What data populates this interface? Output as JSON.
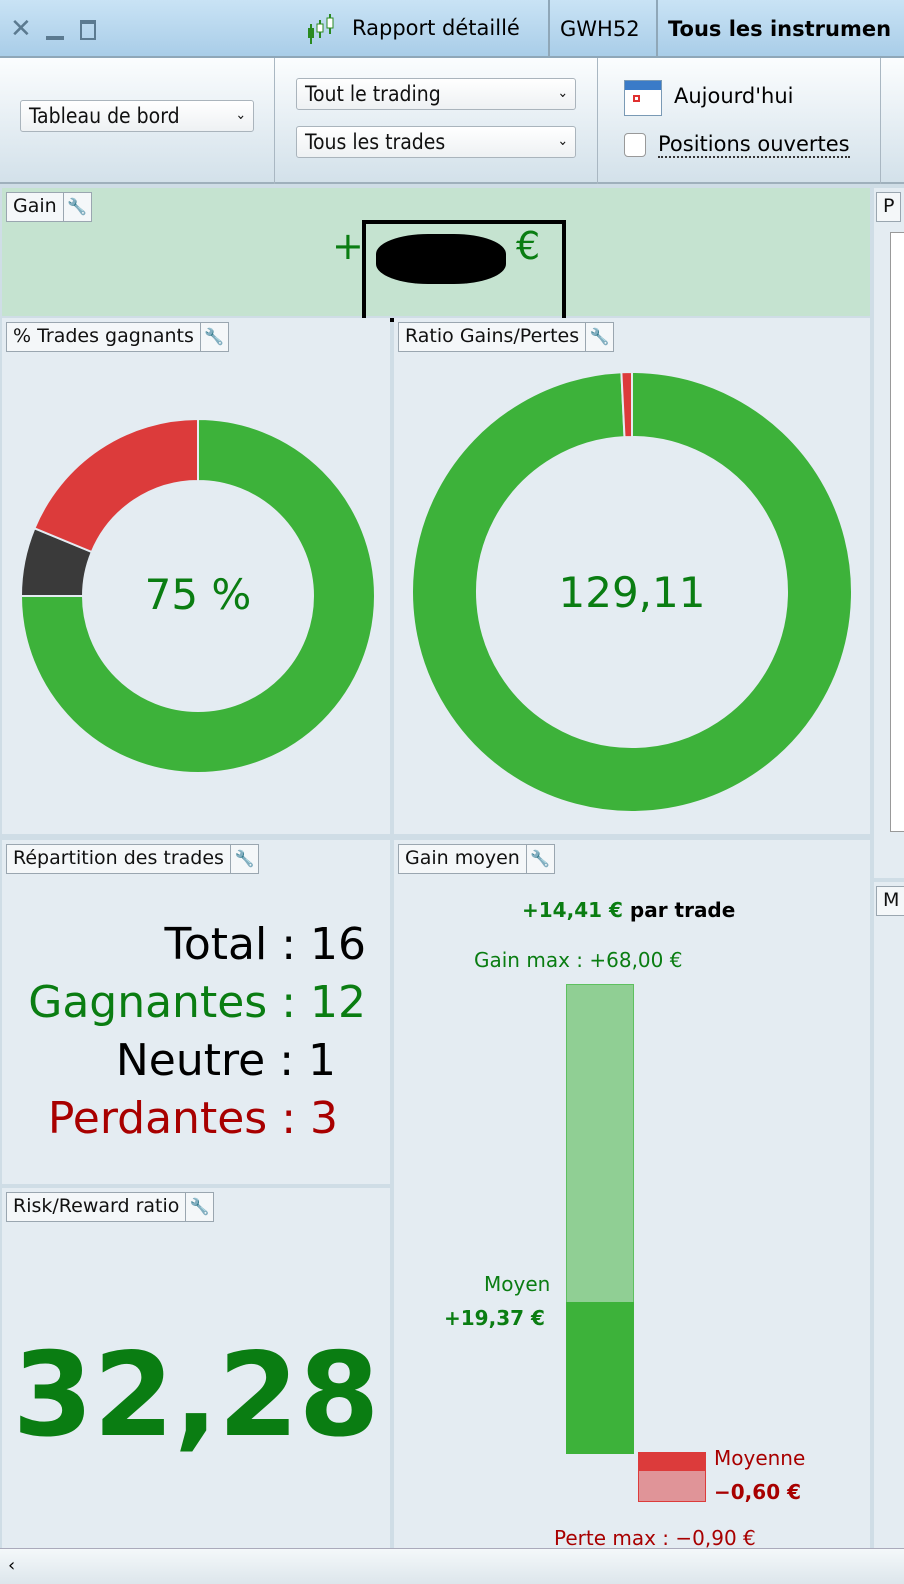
{
  "titlebar": {
    "report_label": "Rapport détaillé",
    "account": "GWH52",
    "instruments": "Tous les instrumen"
  },
  "toolbar": {
    "view_select": "Tableau de bord",
    "trading_select": "Tout le trading",
    "trades_select": "Tous les trades",
    "date_label": "Aujourd'hui",
    "open_positions_label": "Positions ouvertes",
    "open_positions_checked": false
  },
  "gain": {
    "title": "Gain",
    "prefix": "+",
    "suffix": "€"
  },
  "win_rate": {
    "title": "% Trades gagnants",
    "value": "75 %"
  },
  "ratio": {
    "title": "Ratio Gains/Pertes",
    "value": "129,11"
  },
  "distribution": {
    "title": "Répartition des trades",
    "total_label": "Total",
    "total": "16",
    "win_label": "Gagnantes",
    "win": "12",
    "neutral_label": "Neutre",
    "neutral": "1",
    "loss_label": "Perdantes",
    "loss": "3"
  },
  "rr": {
    "title": "Risk/Reward ratio",
    "value": "32,28"
  },
  "avg": {
    "title": "Gain moyen",
    "per_trade_value": "+14,41 €",
    "per_trade_label": "par trade",
    "max_gain": "Gain max : +68,00 €",
    "avg_win_label": "Moyen",
    "avg_win": "+19,37 €",
    "avg_loss_label": "Moyenne",
    "avg_loss": "−0,60 €",
    "max_loss": "Perte max : −0,90 €"
  },
  "side": {
    "p_title": "P",
    "m_title": "M"
  },
  "chart_data": [
    {
      "type": "pie",
      "title": "% Trades gagnants",
      "categories": [
        "Gagnantes",
        "Neutre",
        "Perdantes"
      ],
      "values": [
        12,
        1,
        3
      ],
      "colors": [
        "#3db23a",
        "#3a3a3a",
        "#dc3b3b"
      ]
    },
    {
      "type": "pie",
      "title": "Ratio Gains/Pertes",
      "categories": [
        "Gains",
        "Pertes"
      ],
      "values": [
        129.11,
        1
      ],
      "colors": [
        "#3db23a",
        "#dc3b3b"
      ]
    },
    {
      "type": "bar",
      "title": "Gain moyen",
      "categories": [
        "Gain moyen",
        "Gain max",
        "Perte moyenne",
        "Perte max"
      ],
      "values": [
        19.37,
        68.0,
        -0.6,
        -0.9
      ]
    }
  ],
  "colors": {
    "green": "#0a7d12",
    "red": "#a80000",
    "bar_green": "#3db23a",
    "bar_light": "#90cf94"
  }
}
